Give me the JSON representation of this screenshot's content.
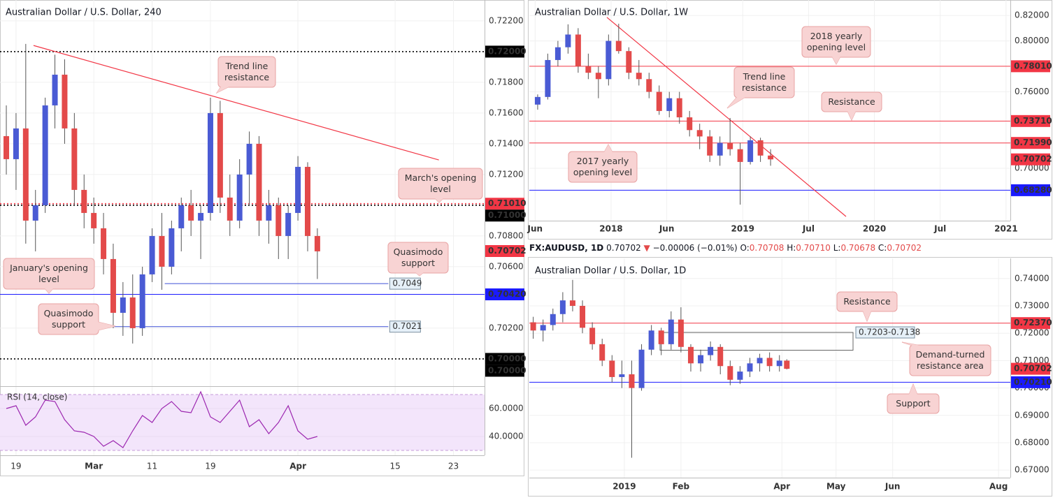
{
  "header": {
    "symbol": "FX:AUDUSD, 1D",
    "last": "0.70702",
    "arrow": "▼",
    "change": "−0.00006 (−0.01%)",
    "ohlc": [
      {
        "key": "O:",
        "value": "0.70708"
      },
      {
        "key": "H:",
        "value": "0.70710"
      },
      {
        "key": "L:",
        "value": "0.70678"
      },
      {
        "key": "C:",
        "value": "0.70702"
      }
    ]
  },
  "chart_data": [
    {
      "type": "candlestick",
      "title": "Australian Dollar / U.S. Dollar, 240",
      "up_color": "#4a5bd4",
      "down_color": "#e34a4a",
      "grid": true,
      "xlim": [
        -1.65,
        48.2
      ],
      "ylim": [
        0.69827,
        0.72336
      ],
      "xticks": [
        {
          "value": 0,
          "label": "19"
        },
        {
          "value": 8,
          "label": "Mar"
        },
        {
          "value": 14,
          "label": "11"
        },
        {
          "value": 20,
          "label": "19"
        },
        {
          "value": 29,
          "label": "Apr"
        },
        {
          "value": 39,
          "label": "15"
        },
        {
          "value": 45,
          "label": "23"
        }
      ],
      "yticks": [
        {
          "value": 0.702,
          "label": "0.70200"
        },
        {
          "value": 0.706,
          "label": "0.70600"
        },
        {
          "value": 0.708,
          "label": "0.70800"
        },
        {
          "value": 0.712,
          "label": "0.71200"
        },
        {
          "value": 0.714,
          "label": "0.71400"
        },
        {
          "value": 0.716,
          "label": "0.71600"
        },
        {
          "value": 0.718,
          "label": "0.71800"
        },
        {
          "value": 0.722,
          "label": "0.72200"
        }
      ],
      "candles": {
        "x": [
          -1,
          0,
          1,
          2,
          3,
          4,
          5,
          6,
          7,
          8,
          9,
          10,
          11,
          12,
          13,
          14,
          15,
          16,
          17,
          18,
          19,
          20,
          21,
          22,
          23,
          24,
          25,
          26,
          27,
          28,
          29,
          30,
          31
        ],
        "open": [
          0.7145,
          0.713,
          0.715,
          0.709,
          0.71,
          0.7165,
          0.7185,
          0.715,
          0.711,
          0.7095,
          0.7085,
          0.7065,
          0.703,
          0.704,
          0.702,
          0.7055,
          0.708,
          0.706,
          0.7085,
          0.71,
          0.709,
          0.7095,
          0.716,
          0.7105,
          0.709,
          0.712,
          0.714,
          0.709,
          0.71,
          0.708,
          0.7095,
          0.7125,
          0.708
        ],
        "high": [
          0.7165,
          0.716,
          0.7205,
          0.711,
          0.717,
          0.7198,
          0.7195,
          0.716,
          0.712,
          0.7105,
          0.7095,
          0.7075,
          0.705,
          0.7055,
          0.706,
          0.7085,
          0.7095,
          0.709,
          0.7105,
          0.711,
          0.71,
          0.717,
          0.7168,
          0.712,
          0.713,
          0.7148,
          0.7145,
          0.711,
          0.7105,
          0.71,
          0.7132,
          0.7128,
          0.7085
        ],
        "low": [
          0.712,
          0.711,
          0.7075,
          0.707,
          0.7095,
          0.715,
          0.714,
          0.71,
          0.7085,
          0.7075,
          0.7055,
          0.702,
          0.7015,
          0.701,
          0.7015,
          0.705,
          0.7045,
          0.7055,
          0.707,
          0.708,
          0.7065,
          0.709,
          0.7095,
          0.708,
          0.7085,
          0.71,
          0.708,
          0.7075,
          0.7065,
          0.7065,
          0.709,
          0.707,
          0.7052
        ],
        "close": [
          0.713,
          0.715,
          0.709,
          0.71,
          0.7165,
          0.7185,
          0.715,
          0.711,
          0.7095,
          0.7085,
          0.7065,
          0.703,
          0.704,
          0.702,
          0.7055,
          0.708,
          0.706,
          0.7085,
          0.71,
          0.709,
          0.7095,
          0.716,
          0.7105,
          0.709,
          0.712,
          0.714,
          0.709,
          0.71,
          0.708,
          0.7095,
          0.7125,
          0.708,
          0.707
        ]
      },
      "levels": [
        {
          "value": 0.72,
          "label": "0.72000",
          "color": "#000000",
          "line": "dotted"
        },
        {
          "value": 0.7101,
          "label": "0.71010",
          "color": "#f23645",
          "line": "dotted"
        },
        {
          "value": 0.71,
          "label": "0.71000",
          "color": "#000000",
          "line": "dotted"
        },
        {
          "value": 0.70702,
          "label": "0.70702",
          "color": "#f23645",
          "line": "none"
        },
        {
          "value": 0.7042,
          "label": "0.70420",
          "color": "#1a1aff",
          "line": "solid"
        },
        {
          "value": 0.7,
          "label": "0.70000",
          "color": "#000000",
          "line": "dotted"
        },
        {
          "value": 0.7,
          "label": "0.70000",
          "color": "#000000",
          "line": "none"
        }
      ],
      "segments": [
        {
          "value": 0.7049,
          "label": "0.7049",
          "x": [
            15.3,
            38.3
          ],
          "color": "#3f51d6"
        },
        {
          "value": 0.7021,
          "label": "0.7021",
          "x": [
            9.7,
            38.3
          ],
          "color": "#3f51d6"
        }
      ],
      "trendlines": [
        {
          "x": [
            1.8,
            43.5
          ],
          "y": [
            0.7204,
            0.71295
          ],
          "color": "#f23645"
        }
      ],
      "annotations": [
        {
          "lines": [
            "Trend line",
            "resistance"
          ]
        },
        {
          "lines": [
            "March's opening",
            "level"
          ]
        },
        {
          "lines": [
            "Quasimodo",
            "support"
          ]
        },
        {
          "lines": [
            "January's opening",
            "level"
          ]
        },
        {
          "lines": [
            "Quasimodo",
            "support"
          ]
        }
      ],
      "rsi": {
        "label": "RSI (14, close)",
        "color": "#9c27b0",
        "ylim": [
          26.5,
          75
        ],
        "bands": [
          30,
          70
        ],
        "yticks": [
          {
            "value": 40,
            "label": "40.0000"
          },
          {
            "value": 60,
            "label": "60.0000"
          }
        ],
        "values": [
          60,
          62,
          48,
          54,
          66,
          65,
          52,
          44,
          43,
          40,
          33,
          37,
          32,
          44,
          55,
          50,
          60,
          65,
          58,
          57,
          72,
          54,
          50,
          58,
          66,
          47,
          52,
          42,
          50,
          62,
          44,
          38,
          40
        ]
      }
    },
    {
      "type": "candlestick",
      "title": "Australian Dollar / U.S. Dollar, 1W",
      "up_color": "#4a5bd4",
      "down_color": "#e34a4a",
      "grid": true,
      "xlim": [
        -32.3,
        157.7
      ],
      "ylim": [
        0.6589,
        0.8321
      ],
      "xticks": [
        {
          "value": -30,
          "label": "Jun"
        },
        {
          "value": 0,
          "label": "2018"
        },
        {
          "value": 22,
          "label": "Jun"
        },
        {
          "value": 52,
          "label": "2019"
        },
        {
          "value": 78,
          "label": "Jul"
        },
        {
          "value": 104,
          "label": "2020"
        },
        {
          "value": 130,
          "label": "Jul"
        },
        {
          "value": 156,
          "label": "2021"
        }
      ],
      "yticks": [
        {
          "value": 0.7,
          "label": "0.70000"
        },
        {
          "value": 0.76,
          "label": "0.76000"
        },
        {
          "value": 0.8,
          "label": "0.80000"
        },
        {
          "value": 0.82,
          "label": "0.82000"
        }
      ],
      "candles": {
        "x": [
          -29,
          -25,
          -21,
          -17,
          -13,
          -9,
          -5,
          -1,
          3,
          7,
          11,
          15,
          19,
          23,
          27,
          31,
          35,
          39,
          43,
          47,
          51,
          55,
          59,
          63
        ],
        "open": [
          0.75,
          0.756,
          0.785,
          0.795,
          0.805,
          0.78,
          0.775,
          0.77,
          0.8,
          0.792,
          0.775,
          0.77,
          0.76,
          0.745,
          0.755,
          0.74,
          0.73,
          0.725,
          0.71,
          0.72,
          0.715,
          0.705,
          0.722,
          0.71
        ],
        "high": [
          0.758,
          0.79,
          0.8,
          0.813,
          0.81,
          0.79,
          0.78,
          0.805,
          0.8135,
          0.795,
          0.785,
          0.775,
          0.765,
          0.76,
          0.76,
          0.745,
          0.735,
          0.73,
          0.725,
          0.7395,
          0.72,
          0.725,
          0.724,
          0.715
        ],
        "low": [
          0.746,
          0.754,
          0.78,
          0.79,
          0.775,
          0.77,
          0.755,
          0.765,
          0.79,
          0.77,
          0.765,
          0.755,
          0.742,
          0.74,
          0.735,
          0.725,
          0.715,
          0.705,
          0.702,
          0.71,
          0.6715,
          0.703,
          0.705,
          0.702
        ],
        "close": [
          0.756,
          0.785,
          0.795,
          0.805,
          0.78,
          0.775,
          0.77,
          0.8,
          0.792,
          0.775,
          0.77,
          0.76,
          0.745,
          0.755,
          0.74,
          0.73,
          0.725,
          0.71,
          0.72,
          0.715,
          0.705,
          0.722,
          0.71,
          0.707
        ]
      },
      "levels": [
        {
          "value": 0.7801,
          "label": "0.78010",
          "color": "#f23645",
          "line": "solid"
        },
        {
          "value": 0.7371,
          "label": "0.73710",
          "color": "#f23645",
          "line": "solid"
        },
        {
          "value": 0.7199,
          "label": "0.71990",
          "color": "#f23645",
          "line": "solid"
        },
        {
          "value": 0.70702,
          "label": "0.70702",
          "color": "#f23645",
          "line": "none"
        },
        {
          "value": 0.6828,
          "label": "0.68280",
          "color": "#1a1aff",
          "line": "solid"
        }
      ],
      "trendlines": [
        {
          "x": [
            -1.66,
            92.8
          ],
          "y": [
            0.8185,
            0.6622
          ],
          "color": "#f23645"
        }
      ],
      "annotations": [
        {
          "lines": [
            "2018 yearly",
            "opening level"
          ]
        },
        {
          "lines": [
            "Trend line",
            "resistance"
          ]
        },
        {
          "lines": [
            "Resistance"
          ]
        },
        {
          "lines": [
            "2017 yearly",
            "opening level"
          ]
        }
      ]
    },
    {
      "type": "candlestick",
      "title": "Australian Dollar / U.S. Dollar, 1D",
      "up_color": "#4a5bd4",
      "down_color": "#e34a4a",
      "grid": true,
      "xlim": [
        -38.6,
        156.8
      ],
      "ylim": [
        0.66724,
        0.74735
      ],
      "xticks": [
        {
          "value": 0,
          "label": "2019"
        },
        {
          "value": 23,
          "label": "Feb"
        },
        {
          "value": 64,
          "label": "Apr"
        },
        {
          "value": 86,
          "label": "May"
        },
        {
          "value": 109,
          "label": "Jun"
        },
        {
          "value": 152,
          "label": "Aug"
        }
      ],
      "yticks": [
        {
          "value": 0.67,
          "label": "0.67000"
        },
        {
          "value": 0.68,
          "label": "0.68000"
        },
        {
          "value": 0.69,
          "label": "0.69000"
        },
        {
          "value": 0.7,
          "label": "0.70000"
        },
        {
          "value": 0.71,
          "label": "0.71000"
        },
        {
          "value": 0.72,
          "label": "0.72000"
        },
        {
          "value": 0.73,
          "label": "0.73000"
        },
        {
          "value": 0.74,
          "label": "0.74000"
        }
      ],
      "candles": {
        "x": [
          -37,
          -33,
          -29,
          -25,
          -21,
          -17,
          -13,
          -9,
          -5,
          -1,
          3,
          7,
          11,
          15,
          19,
          23,
          27,
          31,
          35,
          39,
          43,
          47,
          51,
          55,
          59,
          63,
          66
        ],
        "open": [
          0.724,
          0.721,
          0.723,
          0.727,
          0.732,
          0.73,
          0.722,
          0.716,
          0.71,
          0.704,
          0.705,
          0.7,
          0.714,
          0.721,
          0.716,
          0.725,
          0.715,
          0.709,
          0.712,
          0.715,
          0.708,
          0.703,
          0.706,
          0.709,
          0.711,
          0.708,
          0.71
        ],
        "high": [
          0.726,
          0.725,
          0.729,
          0.735,
          0.7395,
          0.732,
          0.724,
          0.718,
          0.712,
          0.71,
          0.71,
          0.716,
          0.723,
          0.722,
          0.728,
          0.7295,
          0.716,
          0.714,
          0.717,
          0.716,
          0.71,
          0.708,
          0.711,
          0.7125,
          0.713,
          0.712,
          0.7105
        ],
        "low": [
          0.718,
          0.717,
          0.721,
          0.724,
          0.728,
          0.72,
          0.714,
          0.708,
          0.702,
          0.7,
          0.6745,
          0.699,
          0.712,
          0.712,
          0.714,
          0.713,
          0.706,
          0.706,
          0.71,
          0.705,
          0.701,
          0.7015,
          0.704,
          0.706,
          0.706,
          0.706,
          0.7068
        ],
        "close": [
          0.721,
          0.723,
          0.727,
          0.732,
          0.73,
          0.722,
          0.716,
          0.71,
          0.704,
          0.705,
          0.7,
          0.714,
          0.721,
          0.716,
          0.725,
          0.715,
          0.709,
          0.712,
          0.715,
          0.708,
          0.703,
          0.706,
          0.709,
          0.711,
          0.708,
          0.71,
          0.707
        ]
      },
      "levels": [
        {
          "value": 0.7237,
          "label": "0.72370",
          "color": "#f23645",
          "line": "solid"
        },
        {
          "value": 0.70702,
          "label": "0.70702",
          "color": "#f23645",
          "line": "none"
        },
        {
          "value": 0.7021,
          "label": "0.70210",
          "color": "#1a1aff",
          "line": "solid"
        }
      ],
      "zones": [
        {
          "low": 0.7138,
          "high": 0.7203,
          "label": "0.7203-0.7138",
          "x": [
            14.5,
            92.9
          ]
        }
      ],
      "annotations": [
        {
          "lines": [
            "Resistance"
          ]
        },
        {
          "lines": [
            "Demand-turned",
            "resistance area"
          ]
        },
        {
          "lines": [
            "Support"
          ]
        }
      ]
    }
  ]
}
